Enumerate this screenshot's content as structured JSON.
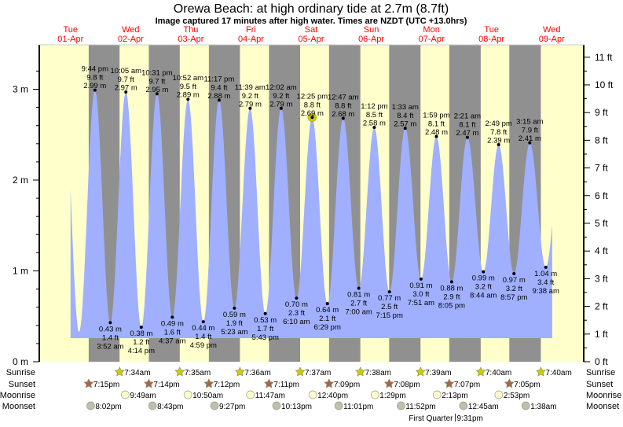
{
  "chart_data": {
    "type": "area",
    "title": "Orewa Beach: at high  ordinary tide at 2.7m (8.7ft)",
    "subtitle": "Image captured 17 minutes after high water. Times are NZDT (UTC +13.0hrs)",
    "days": [
      {
        "dow": "Tue",
        "date": "01-Apr"
      },
      {
        "dow": "Wed",
        "date": "02-Apr"
      },
      {
        "dow": "Thu",
        "date": "03-Apr"
      },
      {
        "dow": "Fri",
        "date": "04-Apr"
      },
      {
        "dow": "Sat",
        "date": "05-Apr"
      },
      {
        "dow": "Sun",
        "date": "06-Apr"
      },
      {
        "dow": "Mon",
        "date": "07-Apr"
      },
      {
        "dow": "Tue",
        "date": "08-Apr"
      },
      {
        "dow": "Wed",
        "date": "09-Apr"
      }
    ],
    "left_axis": {
      "unit": "m",
      "ylim": [
        0,
        3.4
      ],
      "ticks": [
        "0 m",
        "1 m",
        "2 m",
        "3 m"
      ]
    },
    "right_axis": {
      "unit": "ft",
      "ticks": [
        "0 ft",
        "1 ft",
        "2 ft",
        "3 ft",
        "4 ft",
        "5 ft",
        "6 ft",
        "7 ft",
        "8 ft",
        "9 ft",
        "10 ft",
        "11 ft"
      ]
    },
    "extremes": [
      {
        "type": "high",
        "date": "01-Apr",
        "time": "9:44 pm",
        "ft": "9.8 ft",
        "m": "2.99 m"
      },
      {
        "type": "low",
        "date": "02-Apr",
        "time": "3:52 am",
        "ft": "1.4 ft",
        "m": "0.43 m"
      },
      {
        "type": "high",
        "date": "02-Apr",
        "time": "10:05 am",
        "ft": "9.7 ft",
        "m": "2.97 m"
      },
      {
        "type": "low",
        "date": "02-Apr",
        "time": "4:14 pm",
        "ft": "1.2 ft",
        "m": "0.38 m"
      },
      {
        "type": "high",
        "date": "02-Apr",
        "time": "10:31 pm",
        "ft": "9.7 ft",
        "m": "2.95 m"
      },
      {
        "type": "low",
        "date": "03-Apr",
        "time": "4:37 am",
        "ft": "1.6 ft",
        "m": "0.49 m"
      },
      {
        "type": "high",
        "date": "03-Apr",
        "time": "10:52 am",
        "ft": "9.5 ft",
        "m": "2.89 m"
      },
      {
        "type": "low",
        "date": "03-Apr",
        "time": "4:59 pm",
        "ft": "1.4 ft",
        "m": "0.44 m"
      },
      {
        "type": "high",
        "date": "03-Apr",
        "time": "11:17 pm",
        "ft": "9.4 ft",
        "m": "2.88 m"
      },
      {
        "type": "low",
        "date": "04-Apr",
        "time": "5:23 am",
        "ft": "1.9 ft",
        "m": "0.59 m"
      },
      {
        "type": "high",
        "date": "04-Apr",
        "time": "11:39 am",
        "ft": "9.2 ft",
        "m": "2.79 m"
      },
      {
        "type": "low",
        "date": "04-Apr",
        "time": "5:43 pm",
        "ft": "1.7 ft",
        "m": "0.53 m"
      },
      {
        "type": "high",
        "date": "05-Apr",
        "time": "12:02 am",
        "ft": "9.2 ft",
        "m": "2.79 m"
      },
      {
        "type": "low",
        "date": "05-Apr",
        "time": "6:10 am",
        "ft": "2.3 ft",
        "m": "0.70 m"
      },
      {
        "type": "high",
        "date": "05-Apr",
        "time": "12:25 pm",
        "ft": "8.8 ft",
        "m": "2.69 m",
        "current": true
      },
      {
        "type": "low",
        "date": "05-Apr",
        "time": "6:29 pm",
        "ft": "2.1 ft",
        "m": "0.64 m"
      },
      {
        "type": "high",
        "date": "06-Apr",
        "time": "12:47 am",
        "ft": "8.8 ft",
        "m": "2.68 m"
      },
      {
        "type": "low",
        "date": "06-Apr",
        "time": "7:00 am",
        "ft": "2.7 ft",
        "m": "0.81 m"
      },
      {
        "type": "high",
        "date": "06-Apr",
        "time": "1:12 pm",
        "ft": "8.5 ft",
        "m": "2.58 m"
      },
      {
        "type": "low",
        "date": "06-Apr",
        "time": "7:15 pm",
        "ft": "2.5 ft",
        "m": "0.77 m"
      },
      {
        "type": "high",
        "date": "07-Apr",
        "time": "1:33 am",
        "ft": "8.4 ft",
        "m": "2.57 m"
      },
      {
        "type": "low",
        "date": "07-Apr",
        "time": "7:51 am",
        "ft": "3.0 ft",
        "m": "0.91 m"
      },
      {
        "type": "high",
        "date": "07-Apr",
        "time": "1:59 pm",
        "ft": "8.1 ft",
        "m": "2.48 m"
      },
      {
        "type": "low",
        "date": "07-Apr",
        "time": "8:05 pm",
        "ft": "2.9 ft",
        "m": "0.88 m"
      },
      {
        "type": "high",
        "date": "08-Apr",
        "time": "2:21 am",
        "ft": "8.1 ft",
        "m": "2.47 m"
      },
      {
        "type": "low",
        "date": "08-Apr",
        "time": "8:44 am",
        "ft": "3.2 ft",
        "m": "0.99 m"
      },
      {
        "type": "high",
        "date": "08-Apr",
        "time": "2:49 pm",
        "ft": "7.8 ft",
        "m": "2.39 m"
      },
      {
        "type": "low",
        "date": "08-Apr",
        "time": "8:57 pm",
        "ft": "3.2 ft",
        "m": "0.97 m"
      },
      {
        "type": "high",
        "date": "09-Apr",
        "time": "3:15 am",
        "ft": "7.9 ft",
        "m": "2.41 m"
      },
      {
        "type": "low",
        "date": "09-Apr",
        "time": "9:38 am",
        "ft": "3.4 ft",
        "m": "1.04 m"
      }
    ],
    "sun_moon": {
      "labels": {
        "sunrise": "Sunrise",
        "sunset": "Sunset",
        "moonrise": "Moonrise",
        "moonset": "Moonset"
      },
      "sunrise": [
        {
          "date": "02-Apr",
          "time": "7:34am"
        },
        {
          "date": "03-Apr",
          "time": "7:35am"
        },
        {
          "date": "04-Apr",
          "time": "7:36am"
        },
        {
          "date": "05-Apr",
          "time": "7:37am"
        },
        {
          "date": "06-Apr",
          "time": "7:38am"
        },
        {
          "date": "07-Apr",
          "time": "7:39am"
        },
        {
          "date": "08-Apr",
          "time": "7:40am"
        },
        {
          "date": "09-Apr",
          "time": "7:40am"
        }
      ],
      "sunset": [
        {
          "date": "01-Apr",
          "time": "7:15pm"
        },
        {
          "date": "02-Apr",
          "time": "7:14pm"
        },
        {
          "date": "03-Apr",
          "time": "7:12pm"
        },
        {
          "date": "04-Apr",
          "time": "7:11pm"
        },
        {
          "date": "05-Apr",
          "time": "7:09pm"
        },
        {
          "date": "06-Apr",
          "time": "7:08pm"
        },
        {
          "date": "07-Apr",
          "time": "7:07pm"
        },
        {
          "date": "08-Apr",
          "time": "7:05pm"
        }
      ],
      "moonrise": [
        {
          "date": "02-Apr",
          "time": "9:49am"
        },
        {
          "date": "03-Apr",
          "time": "10:50am"
        },
        {
          "date": "04-Apr",
          "time": "11:47am"
        },
        {
          "date": "05-Apr",
          "time": "12:40pm"
        },
        {
          "date": "06-Apr",
          "time": "1:29pm"
        },
        {
          "date": "07-Apr",
          "time": "2:13pm"
        },
        {
          "date": "08-Apr",
          "time": "2:53pm"
        }
      ],
      "moonset": [
        {
          "date": "01-Apr",
          "time": "8:02pm"
        },
        {
          "date": "02-Apr",
          "time": "8:43pm"
        },
        {
          "date": "03-Apr",
          "time": "9:27pm"
        },
        {
          "date": "04-Apr",
          "time": "10:13pm"
        },
        {
          "date": "05-Apr",
          "time": "11:01pm"
        },
        {
          "date": "06-Apr",
          "time": "11:52pm"
        },
        {
          "date": "08-Apr",
          "time": "12:45am"
        },
        {
          "date": "09-Apr",
          "time": "1:38am"
        }
      ],
      "moon_phase": {
        "name": "First Quarter",
        "date": "07-Apr",
        "time": "9:31pm"
      }
    },
    "colors": {
      "day": "#ffffcc",
      "night": "#909090",
      "water": "#a0b0ff",
      "date_label": "#ff0000",
      "sunrise": "#cccc00",
      "sunset": "#aa6644",
      "moonrise": "#ffffcc",
      "moonset": "#c0c0a8",
      "current": "#cccc00"
    }
  }
}
